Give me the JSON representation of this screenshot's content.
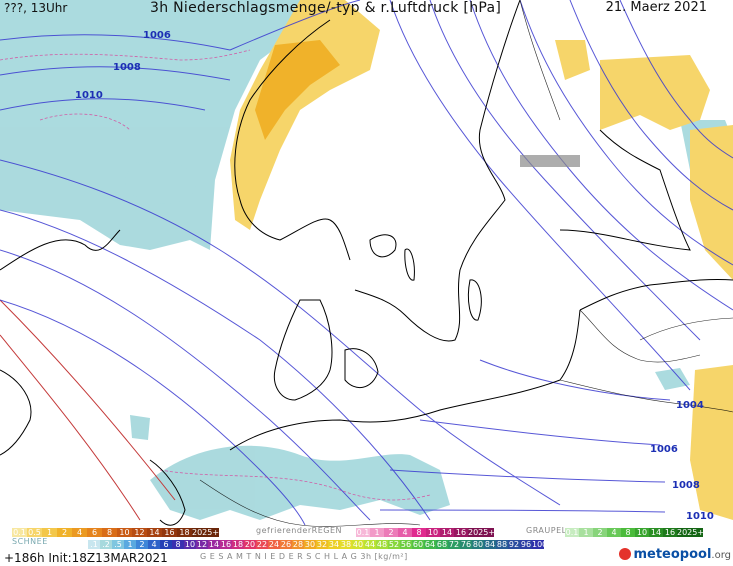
{
  "header": {
    "left": "???, 13Uhr",
    "title": "3h Niederschlagsmenge/-typ & r.Luftdruck [hPa]",
    "date": "21. Maerz 2021"
  },
  "isobars": {
    "labels": [
      "1006",
      "1008",
      "1010",
      "1004",
      "1006",
      "1008",
      "1010"
    ]
  },
  "legend": {
    "rain_scale": [
      "0.1",
      "0.5",
      "1",
      "2",
      "4",
      "6",
      "8",
      "10",
      "12",
      "14",
      "16",
      "18",
      "2025+"
    ],
    "freezing_label": "gefrierenderREGEN",
    "freezing_scale": [
      "0.1",
      "1",
      "2",
      "4",
      "8",
      "10",
      "14",
      "16",
      "2025+"
    ],
    "graupel_label": "GRAUPEL",
    "graupel_scale": [
      "0.1",
      "1",
      "2",
      "4",
      "8",
      "10",
      "14",
      "16",
      "2025+"
    ],
    "snow_label": "SCHNEE",
    "total_scale": [
      ".1",
      ".2",
      ".5",
      "1",
      "2",
      "4",
      "6",
      "8",
      "10",
      "12",
      "14",
      "16",
      "18",
      "20",
      "22",
      "24",
      "26",
      "28",
      "30",
      "32",
      "34",
      "38",
      "40",
      "44",
      "48",
      "52",
      "56",
      "60",
      "64",
      "68",
      "72",
      "76",
      "80",
      "84",
      "88",
      "92",
      "96",
      "100"
    ],
    "total_label": "G E S A M T N I E D E R S C H L A G   3h  [kg/m²]"
  },
  "footer": {
    "run": "+186h  Init:18Z13MAR2021",
    "brand": "meteopool",
    "brand_suffix": ".org"
  },
  "colors": {
    "isobar": "#3a3ad0",
    "isobar_label": "#1c2fb4",
    "snow": "#a7d9dd",
    "rain_light": "#f6d56a",
    "rain_heavy": "#f0b22a",
    "coast": "#000000",
    "red_line": "#c43a3a",
    "freezing": "#e02a8f",
    "graupel": "#33aa33"
  }
}
